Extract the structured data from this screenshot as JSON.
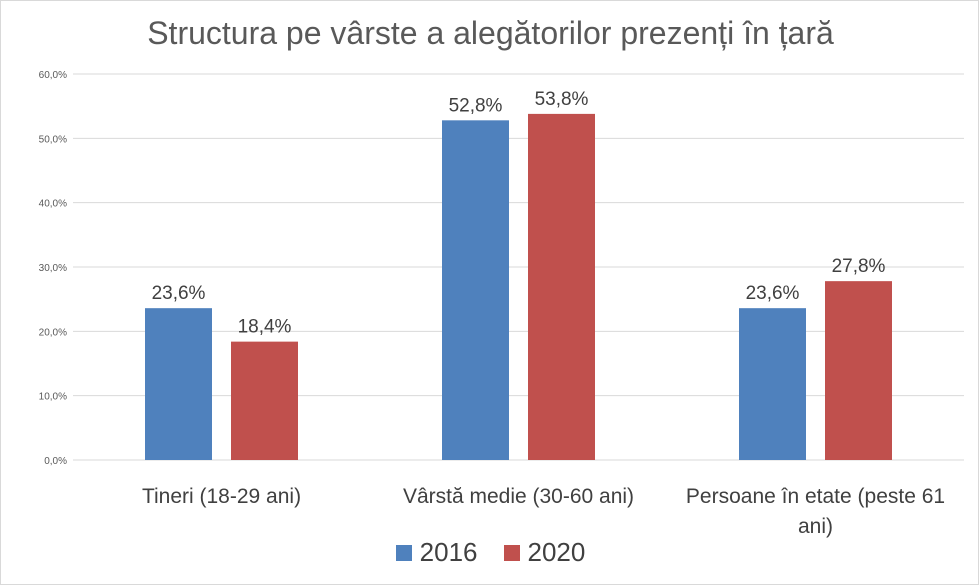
{
  "chart_data": {
    "type": "bar",
    "title": "Structura pe vârste a alegătorilor prezenți în țară",
    "categories": [
      "Tineri (18-29 ani)",
      "Vârstă medie (30-60 ani)",
      "Persoane în etate (peste 61 ani)"
    ],
    "category_lines": [
      [
        "Tineri (18-29 ani)"
      ],
      [
        "Vârstă medie (30-60 ani)"
      ],
      [
        "Persoane în etate (peste 61",
        "ani)"
      ]
    ],
    "series": [
      {
        "name": "2016",
        "color": "#4f81bd",
        "values": [
          23.6,
          52.8,
          23.6
        ],
        "labels": [
          "23,6%",
          "52,8%",
          "23,6%"
        ]
      },
      {
        "name": "2020",
        "color": "#c0504d",
        "values": [
          18.4,
          53.8,
          27.8
        ],
        "labels": [
          "18,4%",
          "53,8%",
          "27,8%"
        ]
      }
    ],
    "ylim": [
      0,
      60
    ],
    "yticks": [
      0,
      10,
      20,
      30,
      40,
      50,
      60
    ],
    "ytick_labels": [
      "0,0%",
      "10,0%",
      "20,0%",
      "30,0%",
      "40,0%",
      "50,0%",
      "60,0%"
    ],
    "grid": true,
    "legend": "bottom"
  }
}
